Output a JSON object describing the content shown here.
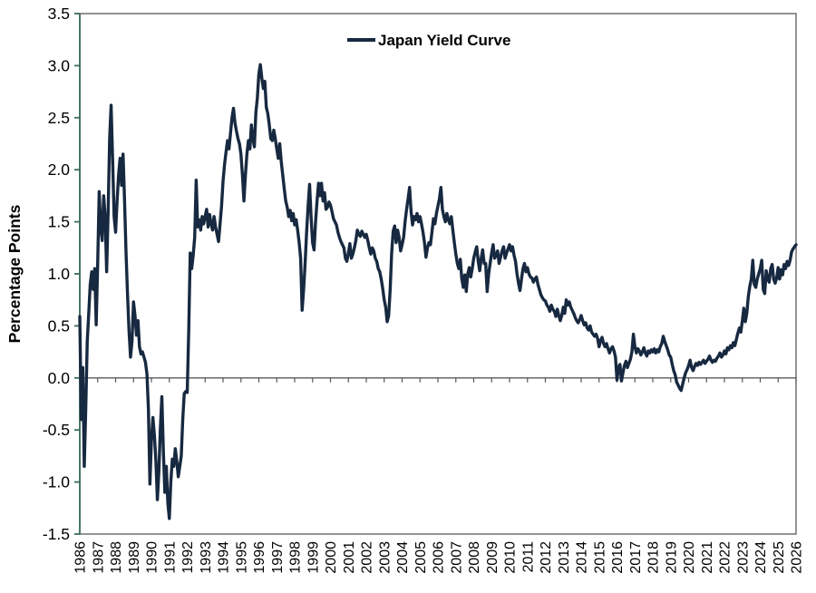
{
  "chart_data": {
    "type": "line",
    "title": "",
    "legend_label": "Japan Yield Curve",
    "ylabel": "Percentage Points",
    "ylim": [
      -1.5,
      3.5
    ],
    "xlim": [
      1986,
      2026
    ],
    "y_ticks": [
      3.5,
      3.0,
      2.5,
      2.0,
      1.5,
      1.0,
      0.5,
      0.0,
      -0.5,
      -1.0,
      -1.5
    ],
    "y_tick_labels": [
      "3.5",
      "3.0",
      "2.5",
      "2.0",
      "1.5",
      "1.0",
      "0.5",
      "0.0",
      "-0.5",
      "-1.0",
      "-1.5"
    ],
    "x_tick_years": [
      1986,
      1987,
      1988,
      1989,
      1990,
      1991,
      1992,
      1993,
      1994,
      1995,
      1996,
      1997,
      1998,
      1999,
      2000,
      2001,
      2002,
      2003,
      2004,
      2005,
      2006,
      2007,
      2008,
      2009,
      2010,
      2011,
      2012,
      2013,
      2014,
      2015,
      2016,
      2017,
      2018,
      2019,
      2020,
      2021,
      2022,
      2023,
      2024,
      2025,
      2026
    ],
    "grid": "off",
    "legend_position": "top-center",
    "axis_cross_at_zero": true,
    "colors": {
      "line": "#172940",
      "left_axis": "#3C6B5E",
      "frame": "#595959",
      "text": "#000000"
    },
    "series": [
      {
        "name": "Japan Yield Curve",
        "frequency": "monthly",
        "start": "1986-01",
        "values": [
          0.59,
          -0.4,
          0.1,
          -0.85,
          -0.3,
          0.35,
          0.62,
          0.9,
          1.02,
          0.85,
          1.05,
          0.51,
          1.1,
          1.79,
          1.45,
          1.32,
          1.75,
          1.55,
          1.02,
          1.6,
          2.3,
          2.62,
          2.1,
          1.55,
          1.4,
          1.7,
          1.95,
          2.11,
          1.85,
          2.15,
          1.7,
          1.2,
          0.8,
          0.45,
          0.2,
          0.35,
          0.73,
          0.6,
          0.41,
          0.55,
          0.3,
          0.23,
          0.25,
          0.2,
          0.15,
          0.04,
          -0.3,
          -1.02,
          -0.6,
          -0.38,
          -0.55,
          -0.8,
          -1.17,
          -0.9,
          -0.48,
          -0.18,
          -0.7,
          -1.1,
          -0.85,
          -1.2,
          -1.35,
          -1.0,
          -0.78,
          -0.85,
          -0.68,
          -0.8,
          -0.95,
          -0.85,
          -0.75,
          -0.4,
          -0.15,
          -0.13,
          -0.14,
          0.45,
          1.2,
          1.05,
          1.18,
          1.35,
          1.9,
          1.45,
          1.52,
          1.42,
          1.55,
          1.48,
          1.55,
          1.62,
          1.45,
          1.57,
          1.48,
          1.42,
          1.55,
          1.45,
          1.38,
          1.31,
          1.48,
          1.65,
          1.89,
          2.05,
          2.17,
          2.28,
          2.2,
          2.35,
          2.5,
          2.59,
          2.45,
          2.37,
          2.3,
          2.25,
          2.15,
          1.95,
          1.7,
          1.95,
          2.15,
          2.28,
          2.2,
          2.43,
          2.3,
          2.22,
          2.55,
          2.69,
          2.92,
          3.01,
          2.88,
          2.78,
          2.85,
          2.6,
          2.54,
          2.43,
          2.3,
          2.28,
          2.38,
          2.3,
          2.2,
          2.11,
          2.25,
          2.08,
          1.95,
          1.82,
          1.7,
          1.64,
          1.55,
          1.61,
          1.51,
          1.58,
          1.47,
          1.52,
          1.42,
          1.3,
          1.15,
          0.65,
          0.85,
          1.1,
          1.4,
          1.65,
          1.86,
          1.55,
          1.3,
          1.23,
          1.5,
          1.7,
          1.87,
          1.75,
          1.87,
          1.7,
          1.78,
          1.62,
          1.64,
          1.69,
          1.66,
          1.6,
          1.53,
          1.5,
          1.47,
          1.4,
          1.35,
          1.31,
          1.28,
          1.25,
          1.15,
          1.12,
          1.2,
          1.29,
          1.15,
          1.19,
          1.25,
          1.32,
          1.42,
          1.38,
          1.36,
          1.41,
          1.38,
          1.35,
          1.38,
          1.32,
          1.25,
          1.19,
          1.25,
          1.22,
          1.15,
          1.12,
          1.05,
          1.02,
          0.95,
          0.86,
          0.75,
          0.68,
          0.54,
          0.6,
          0.85,
          1.2,
          1.41,
          1.46,
          1.3,
          1.42,
          1.35,
          1.22,
          1.28,
          1.35,
          1.5,
          1.62,
          1.72,
          1.83,
          1.6,
          1.47,
          1.55,
          1.52,
          1.58,
          1.5,
          1.55,
          1.48,
          1.4,
          1.3,
          1.16,
          1.25,
          1.3,
          1.28,
          1.4,
          1.53,
          1.48,
          1.58,
          1.65,
          1.72,
          1.83,
          1.62,
          1.55,
          1.5,
          1.58,
          1.52,
          1.48,
          1.55,
          1.42,
          1.3,
          1.19,
          1.1,
          1.05,
          1.14,
          0.95,
          0.87,
          0.99,
          0.83,
          1.0,
          1.06,
          0.97,
          1.05,
          1.15,
          1.21,
          1.26,
          1.12,
          1.03,
          1.15,
          1.23,
          1.1,
          1.1,
          0.83,
          1.0,
          1.1,
          1.2,
          1.28,
          1.15,
          1.18,
          1.22,
          1.1,
          1.16,
          1.22,
          1.26,
          1.15,
          1.2,
          1.24,
          1.28,
          1.22,
          1.26,
          1.18,
          1.12,
          1.0,
          0.91,
          0.84,
          0.95,
          1.05,
          1.1,
          1.02,
          1.06,
          1.0,
          0.97,
          0.96,
          0.92,
          0.95,
          0.97,
          0.9,
          0.85,
          0.8,
          0.77,
          0.75,
          0.74,
          0.7,
          0.68,
          0.64,
          0.7,
          0.66,
          0.64,
          0.59,
          0.66,
          0.6,
          0.55,
          0.6,
          0.68,
          0.62,
          0.75,
          0.7,
          0.73,
          0.68,
          0.65,
          0.62,
          0.58,
          0.55,
          0.53,
          0.56,
          0.6,
          0.55,
          0.51,
          0.53,
          0.48,
          0.46,
          0.5,
          0.44,
          0.42,
          0.4,
          0.42,
          0.38,
          0.3,
          0.36,
          0.39,
          0.33,
          0.3,
          0.33,
          0.28,
          0.24,
          0.28,
          0.3,
          0.26,
          0.2,
          -0.02,
          0.1,
          0.13,
          -0.03,
          0.05,
          0.12,
          0.16,
          0.1,
          0.14,
          0.18,
          0.25,
          0.42,
          0.3,
          0.24,
          0.28,
          0.26,
          0.22,
          0.25,
          0.29,
          0.24,
          0.21,
          0.26,
          0.24,
          0.27,
          0.25,
          0.28,
          0.24,
          0.27,
          0.25,
          0.3,
          0.33,
          0.4,
          0.35,
          0.31,
          0.27,
          0.22,
          0.2,
          0.13,
          0.07,
          0.03,
          -0.04,
          -0.07,
          -0.1,
          -0.12,
          -0.06,
          0.0,
          0.05,
          0.08,
          0.12,
          0.17,
          0.1,
          0.07,
          0.11,
          0.14,
          0.12,
          0.15,
          0.13,
          0.15,
          0.17,
          0.14,
          0.16,
          0.18,
          0.21,
          0.17,
          0.15,
          0.17,
          0.16,
          0.19,
          0.21,
          0.24,
          0.2,
          0.22,
          0.26,
          0.23,
          0.29,
          0.27,
          0.31,
          0.29,
          0.34,
          0.31,
          0.37,
          0.43,
          0.48,
          0.44,
          0.55,
          0.67,
          0.54,
          0.62,
          0.78,
          0.88,
          0.95,
          1.13,
          0.9,
          0.87,
          0.95,
          1.0,
          1.05,
          1.13,
          0.85,
          0.81,
          1.03,
          0.95,
          0.92,
          1.05,
          1.09,
          0.95,
          0.91,
          0.96,
          1.06,
          0.95,
          1.04,
          0.99,
          1.09,
          1.05,
          1.12,
          1.08,
          1.13,
          1.21,
          1.24,
          1.26,
          1.28
        ]
      }
    ]
  }
}
